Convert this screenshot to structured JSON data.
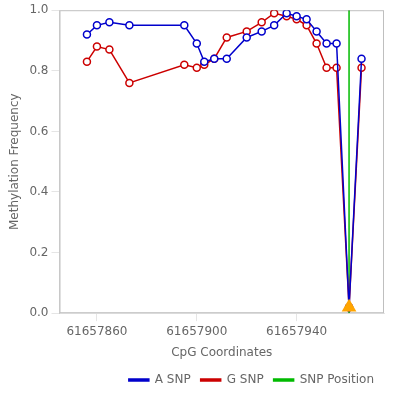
{
  "chart_data": {
    "type": "line",
    "xlabel": "CpG Coordinates",
    "ylabel": "Methylation Frequency",
    "x": [
      61657856,
      61657860,
      61657865,
      61657873,
      61657895,
      61657900,
      61657903,
      61657907,
      61657912,
      61657920,
      61657926,
      61657931,
      61657936,
      61657940,
      61657944,
      61657948,
      61657952,
      61657956,
      61657961,
      61657966
    ],
    "series": [
      {
        "name": "A SNP",
        "color": "#0000cc",
        "marker": "open_circle",
        "values": [
          0.92,
          0.95,
          0.96,
          0.95,
          0.95,
          0.89,
          0.83,
          0.84,
          0.84,
          0.91,
          0.93,
          0.95,
          0.99,
          0.98,
          0.97,
          0.93,
          0.89,
          0.89,
          0.02,
          0.84
        ]
      },
      {
        "name": "G SNP",
        "color": "#cc0000",
        "marker": "open_circle",
        "values": [
          0.83,
          0.88,
          0.87,
          0.76,
          0.82,
          0.81,
          0.82,
          0.84,
          0.91,
          0.93,
          0.96,
          0.99,
          0.98,
          0.97,
          0.95,
          0.89,
          0.81,
          0.81,
          0.02,
          0.81
        ]
      },
      {
        "name": "SNP Position",
        "type": "vline",
        "color": "#00bb00",
        "x": [
          61657961
        ]
      },
      {
        "type": "scatter",
        "marker": "triangle",
        "color": "#ffa500",
        "x": [
          61657961
        ],
        "values": [
          0.02
        ]
      }
    ],
    "xlim": [
      61657845,
      61657975
    ],
    "xticks": [
      61657860,
      61657900,
      61657940
    ],
    "ylim": [
      0.0,
      1.0
    ],
    "yticks": [
      {
        "value": 0.0,
        "label": "0.0"
      },
      0.2,
      0.4,
      0.6,
      0.8,
      {
        "value": 1.0,
        "label": "1.0"
      }
    ],
    "grid": false,
    "legend": "lower right"
  }
}
